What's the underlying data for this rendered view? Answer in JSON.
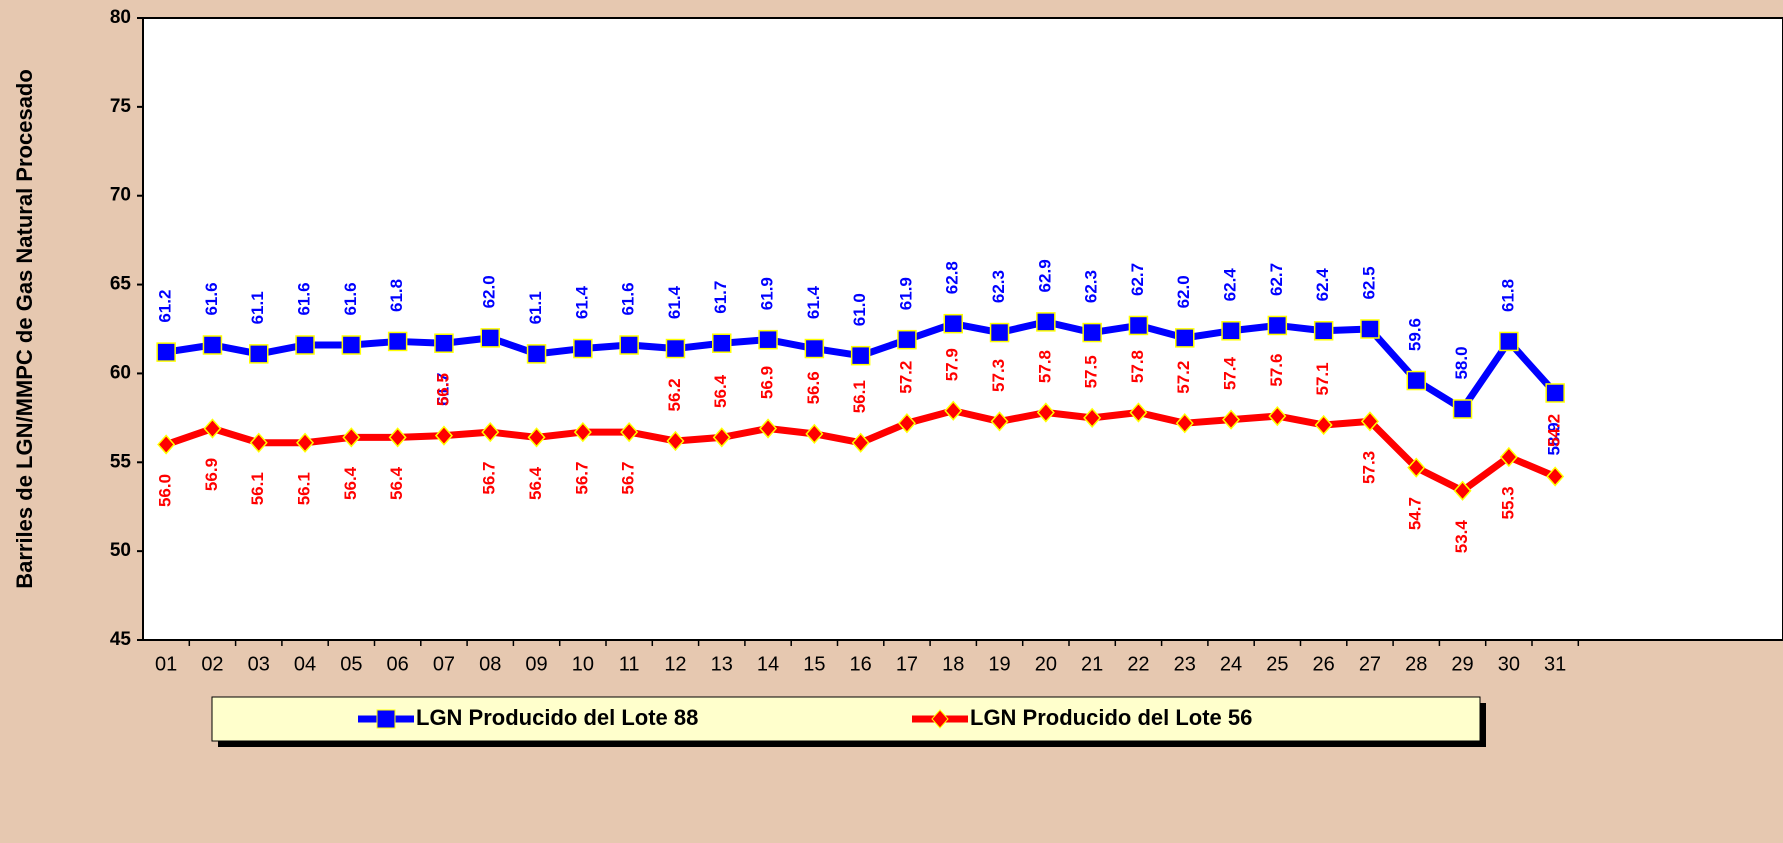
{
  "chart_data": {
    "type": "line",
    "y_label": "Barriles de LGN/MMPC de Gas Natural Procesado",
    "categories": [
      "01",
      "02",
      "03",
      "04",
      "05",
      "06",
      "07",
      "08",
      "09",
      "10",
      "11",
      "12",
      "13",
      "14",
      "15",
      "16",
      "17",
      "18",
      "19",
      "20",
      "21",
      "22",
      "23",
      "24",
      "25",
      "26",
      "27",
      "28",
      "29",
      "30",
      "31"
    ],
    "series": [
      {
        "name": "LGN Producido del Lote 88",
        "color": "#0000ff",
        "marker": "square",
        "label_color": "#0000ff",
        "values": [
          61.2,
          61.6,
          61.1,
          61.6,
          61.6,
          61.8,
          61.7,
          62.0,
          61.1,
          61.4,
          61.6,
          61.4,
          61.7,
          61.9,
          61.4,
          61.0,
          61.9,
          62.8,
          62.3,
          62.9,
          62.3,
          62.7,
          62.0,
          62.4,
          62.7,
          62.4,
          62.5,
          59.6,
          58.0,
          61.8,
          58.9
        ],
        "value_labels": [
          "61.2",
          "61.6",
          "61.1",
          "61.6",
          "61.6",
          "61.8",
          "61.7",
          "62.0",
          "61.1",
          "61.4",
          "61.6",
          "61.4",
          "61.7",
          "61.9",
          "61.4",
          "61.0",
          "61.9",
          "62.8",
          "62.3",
          "62.9",
          "62.3",
          "62.7",
          "62.0",
          "62.4",
          "62.7",
          "62.4",
          "62.5",
          "59.6",
          "58.0",
          "61.8",
          "58.9"
        ]
      },
      {
        "name": "LGN Producido del Lote 56",
        "color": "#ff0000",
        "marker": "diamond",
        "label_color": "#ff0000",
        "values": [
          56.0,
          56.9,
          56.1,
          56.1,
          56.4,
          56.4,
          56.5,
          56.7,
          56.4,
          56.7,
          56.7,
          56.2,
          56.4,
          56.9,
          56.6,
          56.1,
          57.2,
          57.9,
          57.3,
          57.8,
          57.5,
          57.8,
          57.2,
          57.4,
          57.6,
          57.1,
          57.3,
          54.7,
          53.4,
          55.3,
          54.2
        ],
        "value_labels": [
          "56.0",
          "56.9",
          "56.1",
          "56.1",
          "56.4",
          "56.4",
          "56.5",
          "56.7",
          "56.4",
          "56.7",
          "56.7",
          "56.2",
          "56.4",
          "56.9",
          "56.6",
          "56.1",
          "57.2",
          "57.9",
          "57.3",
          "57.8",
          "57.5",
          "57.8",
          "57.2",
          "57.4",
          "57.6",
          "57.1",
          "57.3",
          "54.7",
          "53.4",
          "55.3",
          "54.2"
        ]
      }
    ],
    "ylim": [
      45,
      80
    ],
    "yticks": [
      45,
      50,
      55,
      60,
      65,
      70,
      75,
      80
    ]
  }
}
